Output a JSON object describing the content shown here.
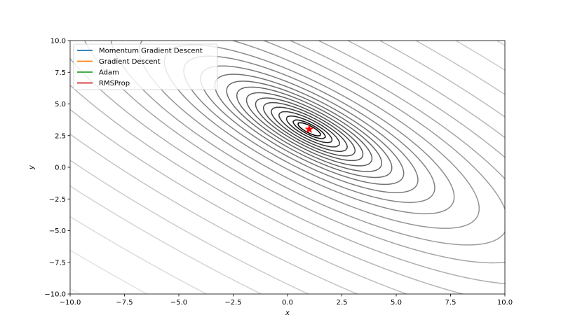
{
  "chart_data": {
    "type": "contour",
    "xlabel": "x",
    "ylabel": "y",
    "xlim": [
      -10,
      10
    ],
    "ylim": [
      -10,
      10
    ],
    "x_ticks": [
      -10,
      -7.5,
      -5,
      -2.5,
      0,
      2.5,
      5,
      7.5,
      10
    ],
    "y_ticks": [
      -10,
      -7.5,
      -5,
      -2.5,
      0,
      2.5,
      5,
      7.5,
      10
    ],
    "x_tick_labels": [
      "−10.0",
      "−7.5",
      "−5.0",
      "−2.5",
      "0.0",
      "2.5",
      "5.0",
      "7.5",
      "10.0"
    ],
    "y_tick_labels": [
      "−10.0",
      "−7.5",
      "−5.0",
      "−2.5",
      "0.0",
      "2.5",
      "5.0",
      "7.5",
      "10.0"
    ],
    "grid": false,
    "legend_position": "upper-left",
    "series": [
      {
        "name": "Momentum Gradient Descent",
        "color": "#1f77b4",
        "values": []
      },
      {
        "name": "Gradient Descent",
        "color": "#ff7f0e",
        "values": []
      },
      {
        "name": "Adam",
        "color": "#2ca02c",
        "values": []
      },
      {
        "name": "RMSProp",
        "color": "#d62728",
        "values": []
      }
    ],
    "minimum": {
      "x": 1,
      "y": 3,
      "marker": "star",
      "color": "#ff0000"
    },
    "contour_function": "(x + 2y - 7)^2 + (2x + y - 5)^2",
    "contour_levels": [
      0.5,
      1,
      2,
      3.5,
      5.5,
      8,
      11,
      15,
      20,
      26,
      34,
      45,
      60,
      80,
      110,
      150,
      200,
      270,
      360,
      480,
      640,
      850,
      1100,
      1450,
      1900,
      2500
    ],
    "contour_colormap": "greys_r"
  }
}
